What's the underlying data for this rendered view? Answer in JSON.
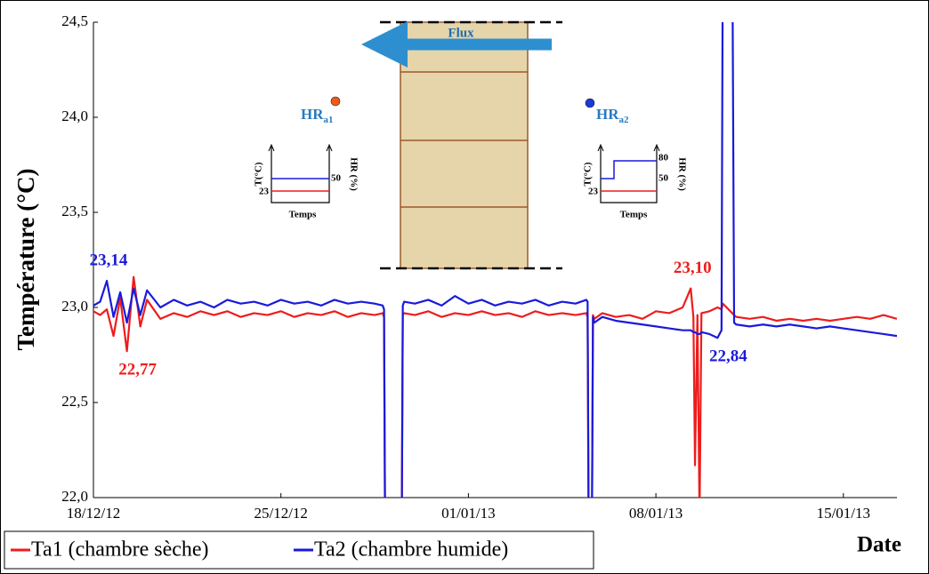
{
  "chart_data": {
    "type": "line",
    "y_label": "Température  (°C)",
    "x_label": "Date",
    "x": [
      0,
      0.25,
      0.5,
      0.75,
      1,
      1.25,
      1.5,
      1.75,
      2,
      2.5,
      3,
      3.5,
      4,
      4.5,
      5,
      5.5,
      6,
      6.5,
      7,
      7.5,
      8,
      8.5,
      9,
      9.5,
      10,
      10.5,
      10.8,
      10.85,
      10.9,
      11.5,
      11.55,
      11.6,
      12,
      12.5,
      13,
      13.5,
      14,
      14.5,
      15,
      15.5,
      16,
      16.5,
      17,
      17.5,
      18,
      18.4,
      18.45,
      18.5,
      18.6,
      18.65,
      18.7,
      19,
      19.5,
      20,
      20.5,
      21,
      21.5,
      22,
      22.3,
      22.4,
      22.46,
      22.55,
      22.63,
      22.7,
      23,
      23.3,
      23.45,
      23.5,
      23.85,
      23.92,
      24,
      24.5,
      25,
      25.5,
      26,
      26.5,
      27,
      27.5,
      28,
      28.5,
      29,
      29.5,
      30
    ],
    "series": [
      {
        "name": "Ta1 (chambre sèche)",
        "color": "#ee1c1c",
        "values": [
          22.98,
          22.96,
          22.99,
          22.85,
          23.05,
          22.77,
          23.16,
          22.9,
          23.04,
          22.94,
          22.97,
          22.95,
          22.98,
          22.96,
          22.98,
          22.95,
          22.97,
          22.96,
          22.98,
          22.95,
          22.97,
          22.96,
          22.98,
          22.95,
          22.97,
          22.96,
          22.97,
          22.95,
          21.5,
          21.5,
          22.96,
          22.97,
          22.96,
          22.98,
          22.95,
          22.97,
          22.96,
          22.98,
          22.96,
          22.97,
          22.95,
          22.98,
          22.96,
          22.97,
          22.96,
          22.97,
          22.95,
          21.5,
          21.5,
          22.96,
          22.94,
          22.97,
          22.95,
          22.96,
          22.94,
          22.98,
          22.97,
          23.0,
          23.1,
          22.95,
          22.17,
          22.96,
          21.9,
          22.97,
          22.98,
          23.0,
          22.99,
          23.02,
          22.97,
          22.96,
          22.95,
          22.94,
          22.95,
          22.93,
          22.94,
          22.93,
          22.94,
          22.93,
          22.94,
          22.95,
          22.94,
          22.96,
          22.94
        ],
        "value_labels": [
          null,
          null,
          null,
          null,
          null,
          "22,77",
          null,
          null,
          null,
          null,
          null,
          null,
          null,
          null,
          null,
          null,
          null,
          null,
          null,
          null,
          null,
          null,
          null,
          null,
          null,
          null,
          null,
          null,
          null,
          null,
          null,
          null,
          null,
          null,
          null,
          null,
          null,
          null,
          null,
          null,
          null,
          null,
          null,
          null,
          null,
          null,
          null,
          null,
          null,
          null,
          null,
          null,
          null,
          null,
          null,
          null,
          null,
          null,
          "23,10",
          null,
          null,
          null,
          null,
          null,
          null,
          null,
          null,
          null,
          null,
          null,
          null,
          null,
          null,
          null,
          null,
          null,
          null,
          null,
          null,
          null,
          null,
          null,
          null
        ]
      },
      {
        "name": "Ta2 (chambre humide)",
        "color": "#1a1adb",
        "values": [
          23.01,
          23.03,
          23.14,
          22.95,
          23.08,
          22.92,
          23.1,
          22.96,
          23.09,
          23.0,
          23.04,
          23.01,
          23.03,
          23.0,
          23.04,
          23.02,
          23.03,
          23.01,
          23.04,
          23.02,
          23.03,
          23.01,
          23.04,
          23.02,
          23.03,
          23.02,
          23.01,
          22.99,
          21.5,
          21.5,
          23.01,
          23.03,
          23.02,
          23.04,
          23.01,
          23.06,
          23.02,
          23.04,
          23.01,
          23.03,
          23.02,
          23.04,
          23.01,
          23.03,
          23.02,
          23.04,
          23.03,
          21.5,
          21.5,
          22.95,
          22.92,
          22.95,
          22.93,
          22.92,
          22.91,
          22.9,
          22.89,
          22.88,
          22.88,
          22.87,
          22.87,
          22.86,
          22.86,
          22.87,
          22.86,
          22.84,
          22.88,
          25.0,
          25.0,
          22.92,
          22.91,
          22.9,
          22.91,
          22.9,
          22.91,
          22.9,
          22.89,
          22.9,
          22.89,
          22.88,
          22.87,
          22.86,
          22.85
        ],
        "value_labels": [
          null,
          null,
          "23,14",
          null,
          null,
          null,
          null,
          null,
          null,
          null,
          null,
          null,
          null,
          null,
          null,
          null,
          null,
          null,
          null,
          null,
          null,
          null,
          null,
          null,
          null,
          null,
          null,
          null,
          null,
          null,
          null,
          null,
          null,
          null,
          null,
          null,
          null,
          null,
          null,
          null,
          null,
          null,
          null,
          null,
          null,
          null,
          null,
          null,
          null,
          null,
          null,
          null,
          null,
          null,
          null,
          null,
          null,
          null,
          null,
          null,
          null,
          null,
          null,
          null,
          null,
          "22,84",
          null,
          null,
          null,
          null,
          null,
          null,
          null,
          null,
          null,
          null,
          null,
          null,
          null,
          null,
          null,
          null,
          null
        ]
      }
    ],
    "xlim": [
      0,
      30
    ],
    "xticks": [
      {
        "value": 0,
        "label": "18/12/12"
      },
      {
        "value": 7,
        "label": "25/12/12"
      },
      {
        "value": 14,
        "label": "01/01/13"
      },
      {
        "value": 21,
        "label": "08/01/13"
      },
      {
        "value": 28,
        "label": "15/01/13"
      }
    ],
    "ylim": [
      22,
      24.5
    ],
    "yticks": [
      {
        "value": 22,
        "label": "22,0"
      },
      {
        "value": 22.5,
        "label": "22,5"
      },
      {
        "value": 23,
        "label": "23,0"
      },
      {
        "value": 23.5,
        "label": "23,5"
      },
      {
        "value": 24,
        "label": "24,0"
      },
      {
        "value": 24.5,
        "label": "24,5"
      }
    ],
    "grid": false,
    "legend": "bottom-left",
    "inset": {
      "flux": "Flux",
      "hr_left": {
        "main": "HR",
        "sub": "a1"
      },
      "hr_right": {
        "main": "HR",
        "sub": "a2"
      },
      "left_chart": {
        "t_axis": "T(°C)",
        "hr_axis": "HR (%)",
        "time_axis": "Temps",
        "t_value": "23",
        "hr_value": "50"
      },
      "right_chart": {
        "t_axis": "T(°C)",
        "hr_axis": "HR (%)",
        "time_axis": "Temps",
        "t_value": "23",
        "hr_low": "50",
        "hr_high": "80"
      }
    }
  }
}
